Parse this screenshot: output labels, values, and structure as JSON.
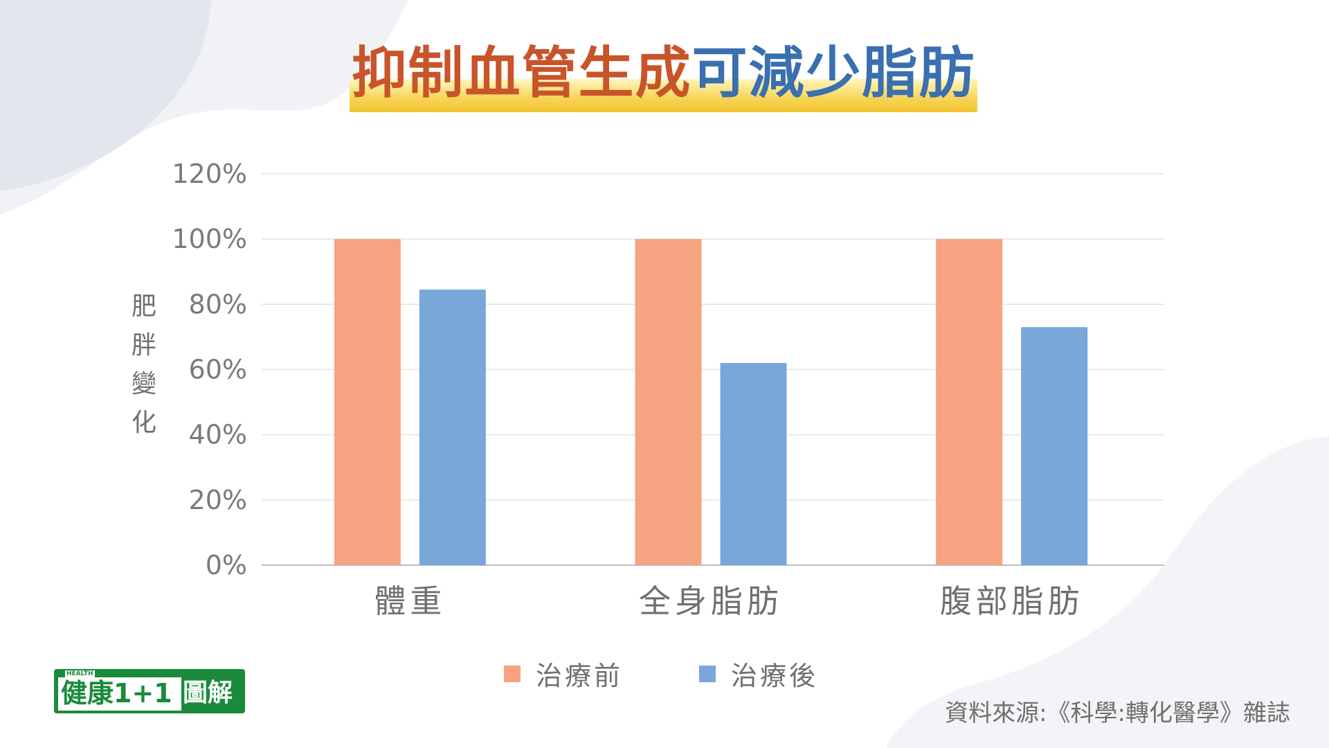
{
  "title": {
    "part1": "抑制血管生成",
    "part2": "可減少脂肪"
  },
  "colors": {
    "before": "#f6a381",
    "after": "#79a7d9",
    "title_part1": "#c8542a",
    "title_part2": "#3a6fb0",
    "axis_text": "#7a7a7a",
    "grid": "#e3e3e3",
    "brand_green": "#1a8a3b"
  },
  "chart_data": {
    "type": "bar",
    "ylabel": "肥胖變化",
    "ylim": [
      0,
      120
    ],
    "yticks": [
      0,
      20,
      40,
      60,
      80,
      100,
      120
    ],
    "ytick_labels": [
      "0%",
      "20%",
      "40%",
      "60%",
      "80%",
      "100%",
      "120%"
    ],
    "categories": [
      "體重",
      "全身脂肪",
      "腹部脂肪"
    ],
    "series": [
      {
        "name": "治療前",
        "values": [
          100,
          100,
          100
        ]
      },
      {
        "name": "治療後",
        "values": [
          84.5,
          62,
          73
        ]
      }
    ],
    "grid": true,
    "legend": "bottom"
  },
  "logo": {
    "health": "HEALTH",
    "main": "健康1+1",
    "side": "圖解"
  },
  "source": "資料來源:《科學:轉化醫學》雜誌"
}
